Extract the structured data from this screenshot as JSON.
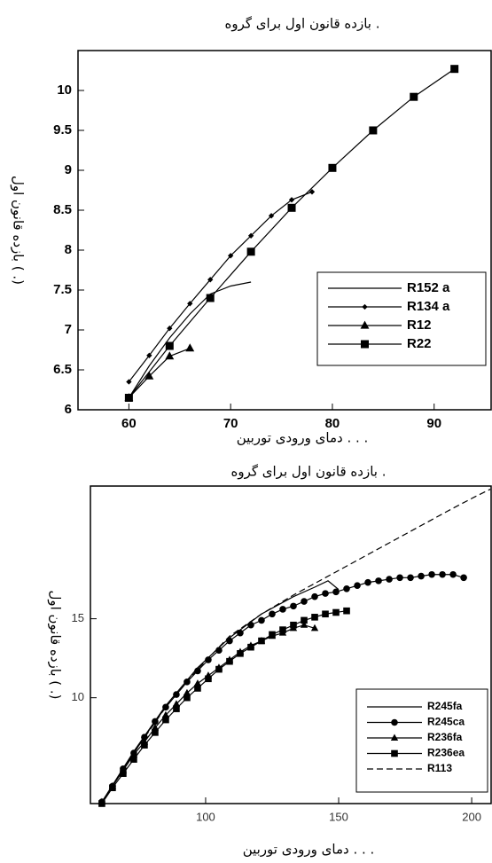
{
  "chart_data": [
    {
      "type": "line",
      "title": "بازده قانون اول برای گروه  .",
      "x_label": "دمای ورودی توربین . . .",
      "y_label": "بازده قانون اول ( .)",
      "xlim": [
        55,
        95.6
      ],
      "ylim": [
        6,
        10.5
      ],
      "xticks": [
        60,
        70,
        80,
        90
      ],
      "yticks": [
        6,
        6.5,
        7,
        7.5,
        8,
        8.5,
        9,
        9.5,
        10
      ],
      "legend": "lower right",
      "series": [
        {
          "name": "R152 a",
          "color": "#000000",
          "x": [
            60,
            62,
            64,
            66,
            68,
            70,
            72
          ],
          "values": [
            6.15,
            6.55,
            6.9,
            7.2,
            7.45,
            7.55,
            7.6
          ]
        },
        {
          "name": "R134 a",
          "color": "#000000",
          "marker": "diamond",
          "x": [
            60,
            62,
            64,
            66,
            68,
            70,
            72,
            74,
            76,
            78
          ],
          "values": [
            6.35,
            6.68,
            7.02,
            7.33,
            7.63,
            7.93,
            8.18,
            8.43,
            8.63,
            8.73
          ]
        },
        {
          "name": "R12",
          "color": "#000000",
          "marker": "triangle",
          "x": [
            60,
            62,
            64,
            66
          ],
          "values": [
            6.15,
            6.42,
            6.67,
            6.77
          ]
        },
        {
          "name": "R22",
          "color": "#000000",
          "marker": "square",
          "x": [
            60,
            64,
            68,
            72,
            76,
            80,
            84,
            88,
            92
          ],
          "values": [
            6.15,
            6.8,
            7.4,
            7.98,
            8.53,
            9.03,
            9.5,
            9.92,
            10.27
          ]
        }
      ]
    },
    {
      "type": "line",
      "title": "بازده قانون اول برای گروه  .",
      "x_label": "دمای ورودی توربین . . .",
      "y_label": "بازده قانون اول ( .)",
      "xlim": [
        56.7,
        207.3
      ],
      "ylim": [
        3.3,
        23.4
      ],
      "xticks": [
        100,
        150,
        200
      ],
      "yticks": [
        10,
        15
      ],
      "legend": "lower right",
      "series": [
        {
          "name": "R245fa",
          "color": "#000000",
          "x": [
            61,
            73,
            85,
            97,
            109,
            121,
            133,
            141,
            146,
            150
          ],
          "values": [
            3.4,
            6.6,
            9.5,
            11.9,
            13.8,
            15.3,
            16.4,
            17.0,
            17.4,
            16.85
          ]
        },
        {
          "name": "R245ca",
          "color": "#000000",
          "marker": "circle",
          "x": [
            61,
            65,
            69,
            73,
            77,
            81,
            85,
            89,
            93,
            97,
            101,
            105,
            109,
            113,
            117,
            121,
            125,
            129,
            133,
            137,
            141,
            145,
            149,
            153,
            157,
            161,
            165,
            169,
            173,
            177,
            181,
            185,
            189,
            193,
            197
          ],
          "values": [
            3.4,
            4.4,
            5.5,
            6.5,
            7.5,
            8.5,
            9.4,
            10.2,
            11.0,
            11.7,
            12.4,
            13.0,
            13.6,
            14.1,
            14.6,
            14.9,
            15.3,
            15.6,
            15.8,
            16.1,
            16.4,
            16.6,
            16.7,
            16.9,
            17.1,
            17.3,
            17.4,
            17.5,
            17.6,
            17.6,
            17.7,
            17.8,
            17.8,
            17.8,
            17.6
          ]
        },
        {
          "name": "R236fa",
          "color": "#000000",
          "marker": "triangle",
          "x": [
            61,
            65,
            69,
            73,
            77,
            81,
            85,
            89,
            93,
            97,
            101,
            105,
            109,
            113,
            117,
            121,
            125,
            129,
            133,
            137,
            141
          ],
          "values": [
            3.4,
            4.4,
            5.4,
            6.4,
            7.2,
            8.1,
            8.9,
            9.6,
            10.3,
            10.9,
            11.4,
            11.9,
            12.4,
            12.9,
            13.3,
            13.6,
            13.9,
            14.1,
            14.4,
            14.6,
            14.4
          ]
        },
        {
          "name": "R236ea",
          "color": "#000000",
          "marker": "square",
          "x": [
            61,
            65,
            69,
            73,
            77,
            81,
            85,
            89,
            93,
            97,
            101,
            105,
            109,
            113,
            117,
            121,
            125,
            129,
            133,
            137,
            141,
            145,
            149,
            153
          ],
          "values": [
            3.3,
            4.3,
            5.2,
            6.1,
            7.0,
            7.8,
            8.6,
            9.3,
            10.0,
            10.6,
            11.2,
            11.8,
            12.3,
            12.8,
            13.2,
            13.6,
            14.0,
            14.3,
            14.6,
            14.9,
            15.1,
            15.3,
            15.4,
            15.5
          ]
        },
        {
          "name": "R113",
          "color": "#000000",
          "dash": "dashed",
          "x": [
            61,
            73,
            85,
            97,
            109,
            121,
            133,
            145,
            157,
            169,
            181,
            193,
            201,
            207
          ],
          "values": [
            3.4,
            6.5,
            9.4,
            11.8,
            13.9,
            15.3,
            16.5,
            17.6,
            18.7,
            19.8,
            20.9,
            22.0,
            22.7,
            23.2
          ]
        }
      ]
    }
  ]
}
